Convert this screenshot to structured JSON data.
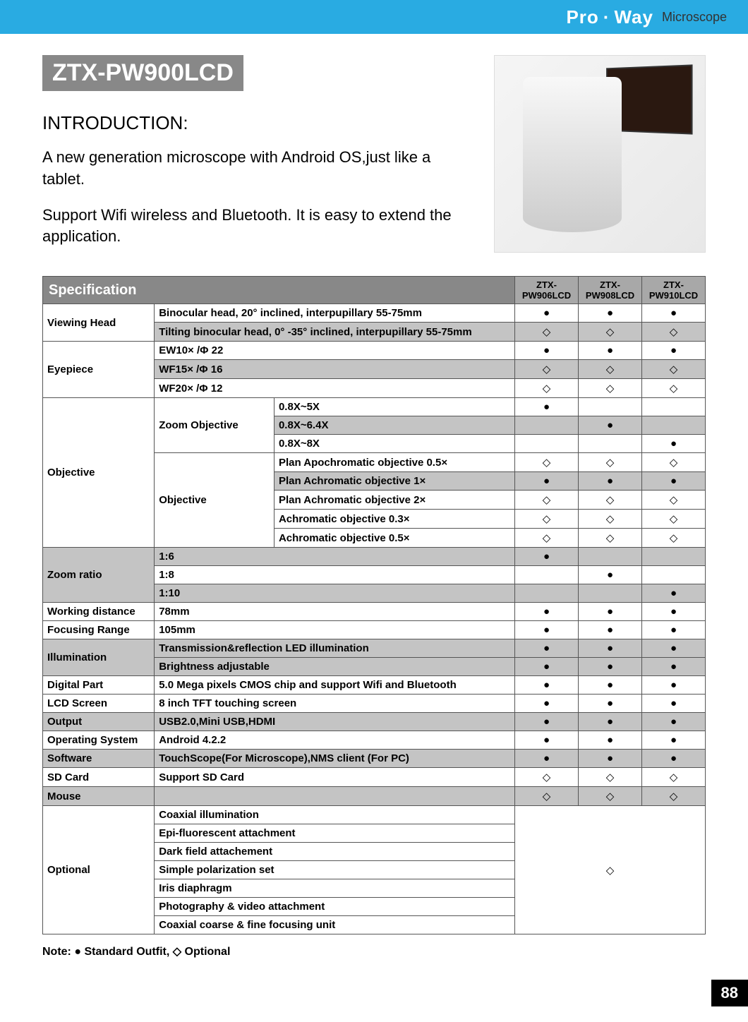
{
  "header": {
    "brand_a": "Pro",
    "brand_b": "Way",
    "brand_sub": "Microscope"
  },
  "title": "ZTX-PW900LCD",
  "intro_heading": "INTRODUCTION:",
  "intro_p1": "A new generation microscope with Android OS,just like a tablet.",
  "intro_p2": "Support Wifi wireless and Bluetooth. It is easy to extend the application.",
  "spec_title": "Specification",
  "columns": [
    "ZTX-PW906LCD",
    "ZTX-PW908LCD",
    "ZTX-PW910LCD"
  ],
  "marks": {
    "std": "●",
    "opt": "◇",
    "none": ""
  },
  "rows": [
    {
      "group": "Viewing Head",
      "groupSpan": 2,
      "label": "Binocular head, 20° inclined, interpupillary 55-75mm",
      "cells": [
        "std",
        "std",
        "std"
      ],
      "shade": false
    },
    {
      "label": "Tilting binocular head, 0° -35° inclined, interpupillary 55-75mm",
      "cells": [
        "opt",
        "opt",
        "opt"
      ],
      "shade": true
    },
    {
      "group": "Eyepiece",
      "groupSpan": 3,
      "label": "EW10× /Φ 22",
      "cells": [
        "std",
        "std",
        "std"
      ],
      "shade": false
    },
    {
      "label": "WF15× /Φ 16",
      "cells": [
        "opt",
        "opt",
        "opt"
      ],
      "shade": true
    },
    {
      "label": "WF20× /Φ 12",
      "cells": [
        "opt",
        "opt",
        "opt"
      ],
      "shade": false
    },
    {
      "group": "Objective",
      "groupSpan": 8,
      "sub": "Zoom Objective",
      "subSpan": 3,
      "label": "0.8X~5X",
      "cells": [
        "std",
        "none",
        "none"
      ],
      "shade": false
    },
    {
      "label": "0.8X~6.4X",
      "cells": [
        "none",
        "std",
        "none"
      ],
      "shade": true
    },
    {
      "label": "0.8X~8X",
      "cells": [
        "none",
        "none",
        "std"
      ],
      "shade": false
    },
    {
      "sub": "Objective",
      "subSpan": 5,
      "label": "Plan Apochromatic objective 0.5×",
      "cells": [
        "opt",
        "opt",
        "opt"
      ],
      "shade": false
    },
    {
      "label": "Plan Achromatic objective 1×",
      "cells": [
        "std",
        "std",
        "std"
      ],
      "shade": true
    },
    {
      "label": "Plan Achromatic objective 2×",
      "cells": [
        "opt",
        "opt",
        "opt"
      ],
      "shade": false
    },
    {
      "label": "Achromatic objective 0.3×",
      "cells": [
        "opt",
        "opt",
        "opt"
      ],
      "shade": false
    },
    {
      "label": "Achromatic objective 0.5×",
      "cells": [
        "opt",
        "opt",
        "opt"
      ],
      "shade": false
    },
    {
      "group": "Zoom ratio",
      "groupSpan": 3,
      "label": "1:6",
      "cells": [
        "std",
        "none",
        "none"
      ],
      "shade": true
    },
    {
      "label": "1:8",
      "cells": [
        "none",
        "std",
        "none"
      ],
      "shade": false
    },
    {
      "label": "1:10",
      "cells": [
        "none",
        "none",
        "std"
      ],
      "shade": true
    },
    {
      "group": "Working distance",
      "groupSpan": 1,
      "label": "78mm",
      "cells": [
        "std",
        "std",
        "std"
      ],
      "shade": false
    },
    {
      "group": "Focusing Range",
      "groupSpan": 1,
      "label": "105mm",
      "cells": [
        "std",
        "std",
        "std"
      ],
      "shade": false
    },
    {
      "group": "Illumination",
      "groupSpan": 2,
      "label": "Transmission&reflection LED illumination",
      "cells": [
        "std",
        "std",
        "std"
      ],
      "shade": true
    },
    {
      "label": "Brightness adjustable",
      "cells": [
        "std",
        "std",
        "std"
      ],
      "shade": true
    },
    {
      "group": "Digital Part",
      "groupSpan": 1,
      "label": "5.0 Mega pixels CMOS chip and support Wifi and Bluetooth",
      "cells": [
        "std",
        "std",
        "std"
      ],
      "shade": false
    },
    {
      "group": "LCD Screen",
      "groupSpan": 1,
      "label": "8 inch TFT touching screen",
      "cells": [
        "std",
        "std",
        "std"
      ],
      "shade": false
    },
    {
      "group": "Output",
      "groupSpan": 1,
      "label": "USB2.0,Mini USB,HDMI",
      "cells": [
        "std",
        "std",
        "std"
      ],
      "shade": true
    },
    {
      "group": "Operating System",
      "groupSpan": 1,
      "label": "Android 4.2.2",
      "cells": [
        "std",
        "std",
        "std"
      ],
      "shade": false
    },
    {
      "group": "Software",
      "groupSpan": 1,
      "label": "TouchScope(For Microscope),NMS client (For PC)",
      "cells": [
        "std",
        "std",
        "std"
      ],
      "shade": true
    },
    {
      "group": "SD Card",
      "groupSpan": 1,
      "label": "Support SD Card",
      "cells": [
        "opt",
        "opt",
        "opt"
      ],
      "shade": false
    },
    {
      "group": "Mouse",
      "groupSpan": 1,
      "label": "",
      "cells": [
        "opt",
        "opt",
        "opt"
      ],
      "shade": true
    },
    {
      "group": "Optional",
      "groupSpan": 7,
      "label": "Coaxial illumination",
      "mergeCells": true,
      "mergeSpan": 7,
      "mergeMark": "opt",
      "shade": false
    },
    {
      "label": "Epi-fluorescent attachment",
      "shade": false
    },
    {
      "label": "Dark field attachement",
      "shade": false
    },
    {
      "label": "Simple polarization set",
      "shade": false
    },
    {
      "label": "Iris diaphragm",
      "shade": false
    },
    {
      "label": "Photography & video attachment",
      "shade": false
    },
    {
      "label": "Coaxial coarse & fine focusing unit",
      "shade": false
    }
  ],
  "note": "Note: ● Standard Outfit, ◇ Optional",
  "page_number": "88",
  "colors": {
    "header_bg": "#29abe2",
    "banner_bg": "#888888",
    "table_header_bg": "#888888",
    "col_head_bg": "#a8a8a8",
    "shade_bg": "#c4c4c4",
    "border": "#555555"
  }
}
